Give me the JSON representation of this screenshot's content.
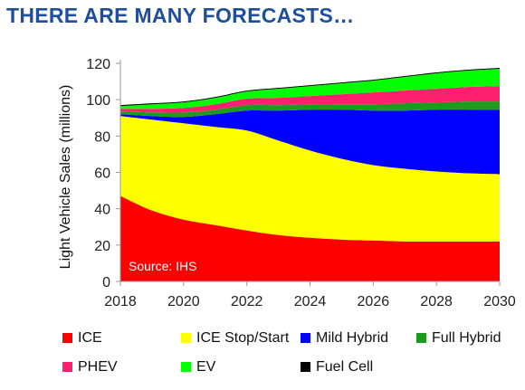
{
  "slide_title": "THERE ARE MANY FORECASTS…",
  "chart_data": {
    "type": "area",
    "stacked": true,
    "x": [
      2018,
      2019,
      2020,
      2021,
      2022,
      2023,
      2024,
      2025,
      2026,
      2027,
      2028,
      2029,
      2030
    ],
    "xticks": [
      2018,
      2020,
      2022,
      2024,
      2026,
      2028,
      2030
    ],
    "xlim": [
      2018,
      2030
    ],
    "ylim": [
      0,
      120
    ],
    "yticks": [
      0,
      20,
      40,
      60,
      80,
      100,
      120
    ],
    "ylabel": "Light Vehicle Sales (millions)",
    "xlabel": "",
    "grid": false,
    "legend_position": "bottom",
    "annotation": "Source: IHS",
    "series": [
      {
        "name": "ICE",
        "color": "#ff0000",
        "values": [
          47,
          39,
          34,
          31,
          28,
          25.5,
          24,
          23,
          22.5,
          22,
          22,
          22,
          22
        ]
      },
      {
        "name": "ICE Stop/Start",
        "color": "#ffff00",
        "values": [
          44,
          50,
          53,
          54,
          55,
          52,
          48,
          44.5,
          41.5,
          40,
          38.5,
          37.5,
          37
        ]
      },
      {
        "name": "Mild Hybrid",
        "color": "#0000ff",
        "values": [
          1,
          2,
          3.5,
          7,
          11,
          16.5,
          22.5,
          27,
          30,
          32,
          34,
          35,
          35.5
        ]
      },
      {
        "name": "Full Hybrid",
        "color": "#1e9a1e",
        "values": [
          1.5,
          2,
          2.5,
          2.5,
          3,
          3,
          3,
          3,
          3.5,
          4,
          4,
          4.5,
          4.5
        ]
      },
      {
        "name": "PHEV",
        "color": "#ff1f6f",
        "values": [
          1.5,
          2,
          2.5,
          3,
          3.5,
          4,
          4.5,
          5.5,
          6.5,
          7,
          7.5,
          8,
          8.5
        ]
      },
      {
        "name": "EV",
        "color": "#00ff00",
        "values": [
          1.5,
          2.5,
          3,
          3.5,
          4,
          5,
          5.5,
          6,
          6.5,
          7.5,
          8.5,
          9,
          9.5
        ]
      },
      {
        "name": "Fuel Cell",
        "color": "#000000",
        "values": [
          0.5,
          0.5,
          0.5,
          0.5,
          0.5,
          0.5,
          0.5,
          0.5,
          0.5,
          0.5,
          0.5,
          0.5,
          0.5
        ]
      }
    ]
  }
}
